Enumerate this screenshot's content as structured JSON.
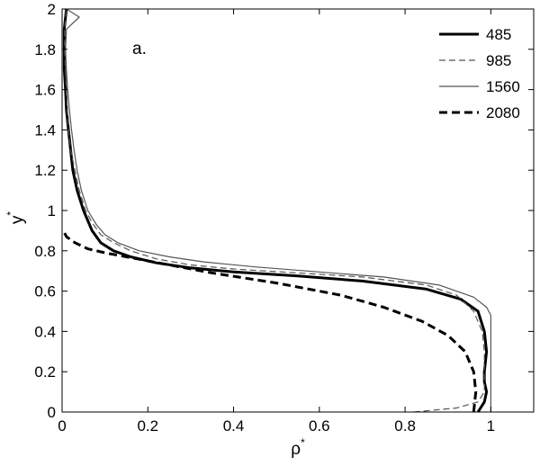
{
  "chart_data": {
    "type": "line",
    "panel_label": "a.",
    "xlabel": "ρ",
    "xlabel_superscript": "*",
    "ylabel": "y",
    "ylabel_superscript": "*",
    "xlim": [
      0,
      1.1
    ],
    "ylim": [
      0,
      2
    ],
    "xticks": [
      0,
      0.2,
      0.4,
      0.6,
      0.8,
      1
    ],
    "xtick_labels": [
      "0",
      "0.2",
      "0.4",
      "0.6",
      "0.8",
      "1"
    ],
    "yticks": [
      0,
      0.2,
      0.4,
      0.6,
      0.8,
      1,
      1.2,
      1.4,
      1.6,
      1.8,
      2
    ],
    "ytick_labels": [
      "0",
      "0.2",
      "0.4",
      "0.6",
      "0.8",
      "1",
      "1.2",
      "1.4",
      "1.6",
      "1.8",
      "2"
    ],
    "grid": false,
    "legend_position": "top-right",
    "series": [
      {
        "name": "485",
        "style": "solid-thick",
        "color": "#000000",
        "points": [
          [
            0.97,
            0
          ],
          [
            0.985,
            0.05
          ],
          [
            0.99,
            0.1
          ],
          [
            0.985,
            0.15
          ],
          [
            0.985,
            0.2
          ],
          [
            0.99,
            0.3
          ],
          [
            0.985,
            0.4
          ],
          [
            0.97,
            0.5
          ],
          [
            0.93,
            0.56
          ],
          [
            0.85,
            0.61
          ],
          [
            0.7,
            0.65
          ],
          [
            0.55,
            0.675
          ],
          [
            0.4,
            0.695
          ],
          [
            0.3,
            0.715
          ],
          [
            0.22,
            0.74
          ],
          [
            0.16,
            0.77
          ],
          [
            0.12,
            0.8
          ],
          [
            0.09,
            0.84
          ],
          [
            0.07,
            0.9
          ],
          [
            0.05,
            1.0
          ],
          [
            0.035,
            1.1
          ],
          [
            0.025,
            1.2
          ],
          [
            0.02,
            1.3
          ],
          [
            0.015,
            1.4
          ],
          [
            0.01,
            1.5
          ],
          [
            0.008,
            1.6
          ],
          [
            0.005,
            1.7
          ],
          [
            0.005,
            1.8
          ],
          [
            0.005,
            1.9
          ],
          [
            0.01,
            2.0
          ]
        ]
      },
      {
        "name": "985",
        "style": "dashed-thin",
        "color": "#555555",
        "points": [
          [
            0.82,
            0
          ],
          [
            0.92,
            0.02
          ],
          [
            0.97,
            0.05
          ],
          [
            0.985,
            0.1
          ],
          [
            0.985,
            0.2
          ],
          [
            0.985,
            0.3
          ],
          [
            0.98,
            0.4
          ],
          [
            0.96,
            0.5
          ],
          [
            0.92,
            0.58
          ],
          [
            0.85,
            0.63
          ],
          [
            0.7,
            0.67
          ],
          [
            0.55,
            0.69
          ],
          [
            0.4,
            0.71
          ],
          [
            0.3,
            0.73
          ],
          [
            0.22,
            0.76
          ],
          [
            0.16,
            0.8
          ],
          [
            0.12,
            0.84
          ],
          [
            0.09,
            0.88
          ],
          [
            0.07,
            0.94
          ],
          [
            0.055,
            1.0
          ],
          [
            0.04,
            1.1
          ],
          [
            0.03,
            1.2
          ],
          [
            0.02,
            1.3
          ],
          [
            0.015,
            1.4
          ],
          [
            0.012,
            1.5
          ],
          [
            0.01,
            1.6
          ],
          [
            0.008,
            1.7
          ],
          [
            0.006,
            1.8
          ],
          [
            0.006,
            1.9
          ],
          [
            0.01,
            2.0
          ]
        ]
      },
      {
        "name": "1560",
        "style": "solid-thin",
        "color": "#555555",
        "points": [
          [
            1.0,
            0
          ],
          [
            1.0,
            0.1
          ],
          [
            1.0,
            0.2
          ],
          [
            1.0,
            0.3
          ],
          [
            1.0,
            0.4
          ],
          [
            1.0,
            0.48
          ],
          [
            0.99,
            0.52
          ],
          [
            0.96,
            0.57
          ],
          [
            0.88,
            0.63
          ],
          [
            0.75,
            0.67
          ],
          [
            0.6,
            0.695
          ],
          [
            0.45,
            0.72
          ],
          [
            0.33,
            0.745
          ],
          [
            0.25,
            0.77
          ],
          [
            0.18,
            0.8
          ],
          [
            0.13,
            0.84
          ],
          [
            0.1,
            0.88
          ],
          [
            0.08,
            0.93
          ],
          [
            0.06,
            1.0
          ],
          [
            0.045,
            1.1
          ],
          [
            0.035,
            1.2
          ],
          [
            0.028,
            1.3
          ],
          [
            0.022,
            1.4
          ],
          [
            0.017,
            1.5
          ],
          [
            0.013,
            1.6
          ],
          [
            0.01,
            1.7
          ],
          [
            0.008,
            1.8
          ],
          [
            0.01,
            1.9
          ],
          [
            0.04,
            1.96
          ],
          [
            0.01,
            2.0
          ]
        ]
      },
      {
        "name": "2080",
        "style": "dashed-thick",
        "color": "#000000",
        "points": [
          [
            0.96,
            0
          ],
          [
            0.965,
            0.1
          ],
          [
            0.96,
            0.2
          ],
          [
            0.94,
            0.3
          ],
          [
            0.9,
            0.38
          ],
          [
            0.84,
            0.45
          ],
          [
            0.75,
            0.52
          ],
          [
            0.65,
            0.58
          ],
          [
            0.5,
            0.64
          ],
          [
            0.35,
            0.69
          ],
          [
            0.25,
            0.73
          ],
          [
            0.15,
            0.77
          ],
          [
            0.1,
            0.79
          ],
          [
            0.06,
            0.81
          ],
          [
            0.03,
            0.84
          ],
          [
            0.01,
            0.87
          ],
          [
            0.003,
            0.9
          ]
        ]
      }
    ]
  }
}
